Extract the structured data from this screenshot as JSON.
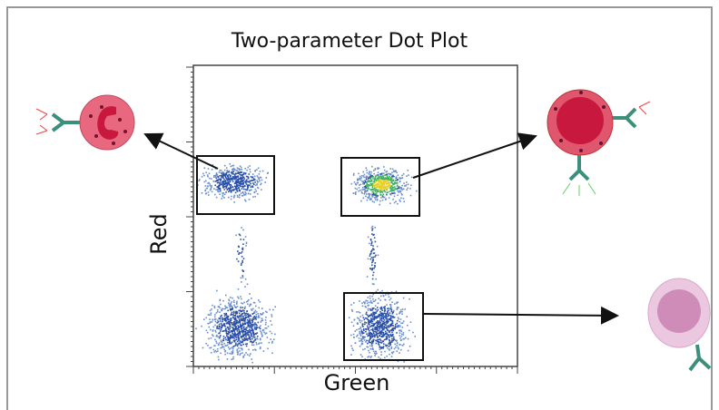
{
  "title": "Two-parameter Dot Plot",
  "x_label": "Green",
  "y_label": "Red"
}
